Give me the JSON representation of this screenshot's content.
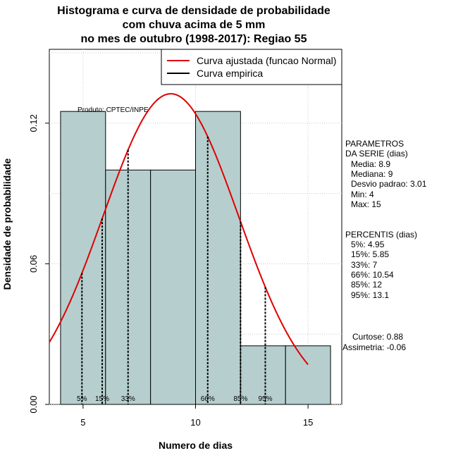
{
  "title": {
    "line1": "Histograma e curva de densidade de probabilidade",
    "line2": "com chuva acima de 5 mm",
    "line3": "no mes de outubro (1998-2017): Regiao 55"
  },
  "product_note": "Produto: CPTEC/INPE",
  "chart_data": {
    "type": "bar",
    "subtype": "histogram-with-normal-curve",
    "xlabel": "Numero de dias",
    "ylabel": "Densidade de probabilidade",
    "xlim": [
      3.5,
      16.5
    ],
    "ylim": [
      0,
      0.1515
    ],
    "xticks": [
      5,
      10,
      15
    ],
    "xtick_labels": [
      "5",
      "10",
      "15"
    ],
    "yticks": [
      0.0,
      0.06,
      0.12
    ],
    "ytick_labels": [
      "0.00",
      "0.06",
      "0.12"
    ],
    "grid": true,
    "bar_color": "#b6cfce",
    "curve_color": "#e00000",
    "bins": [
      {
        "x0": 4,
        "x1": 6,
        "density": 0.125
      },
      {
        "x0": 6,
        "x1": 8,
        "density": 0.1
      },
      {
        "x0": 8,
        "x1": 10,
        "density": 0.1
      },
      {
        "x0": 10,
        "x1": 12,
        "density": 0.125
      },
      {
        "x0": 12,
        "x1": 14,
        "density": 0.025
      },
      {
        "x0": 14,
        "x1": 16,
        "density": 0.025
      }
    ],
    "normal_fit": {
      "mean": 8.9,
      "sd": 3.01,
      "x_from": 3.5,
      "x_to": 15
    },
    "percentiles": [
      {
        "label": "5%",
        "value": 4.95
      },
      {
        "label": "15%",
        "value": 5.85
      },
      {
        "label": "33%",
        "value": 7
      },
      {
        "label": "66%",
        "value": 10.54
      },
      {
        "label": "85%",
        "value": 12
      },
      {
        "label": "95%",
        "value": 13.1
      }
    ],
    "legend": {
      "position": "top-right",
      "items": [
        {
          "label": "Curva ajustada (funcao Normal)",
          "color": "#e00000"
        },
        {
          "label": "Curva empirica",
          "color": "#000000"
        }
      ]
    }
  },
  "stats_panel": {
    "params_title_1": "PARAMETROS",
    "params_title_2": "DA SERIE (dias)",
    "media": "Media: 8.9",
    "mediana": "Mediana: 9",
    "desvio": "Desvio padrao: 3.01",
    "min": "Min: 4",
    "max": "Max: 15",
    "perc_title": "PERCENTIS (dias)",
    "p5": "5%: 4.95",
    "p15": "15%: 5.85",
    "p33": "33%: 7",
    "p66": "66%: 10.54",
    "p85": "85%: 12",
    "p95": "95%: 13.1",
    "curtose": "Curtose: 0.88",
    "assimetria": "Assimetria: -0.06"
  }
}
